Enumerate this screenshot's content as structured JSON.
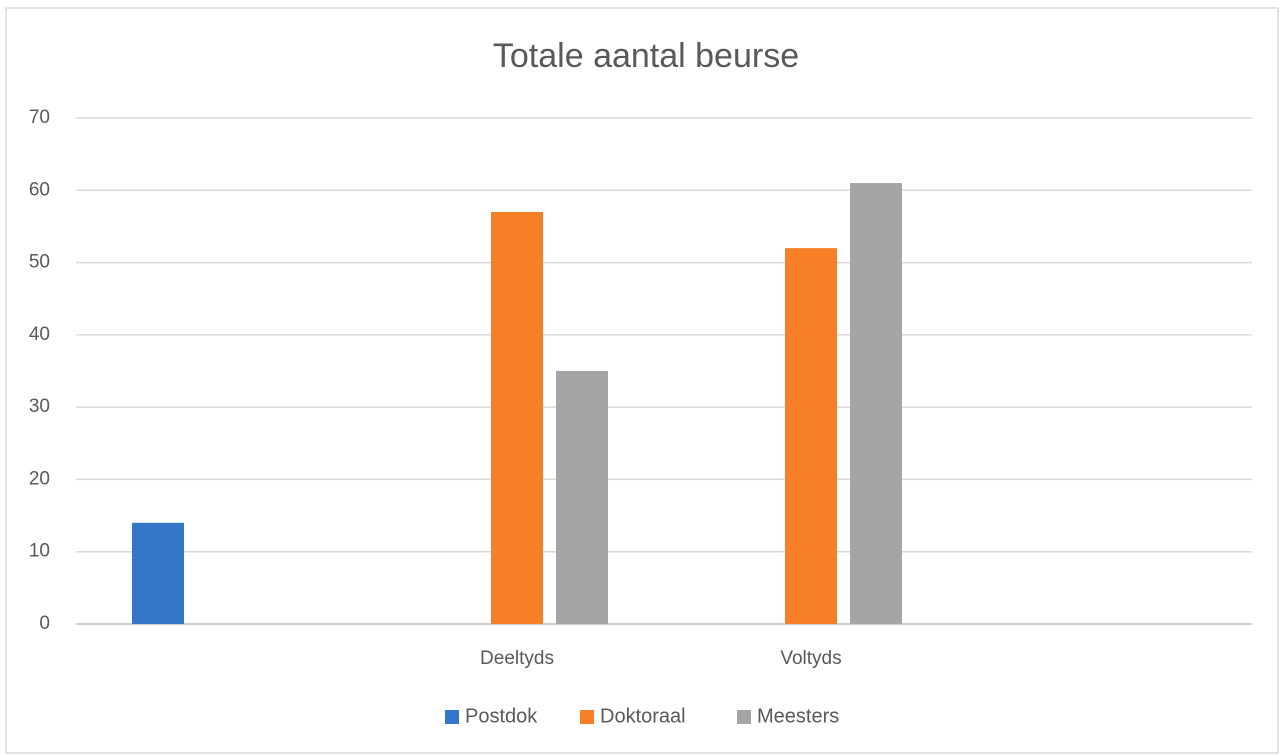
{
  "chart_data": {
    "type": "bar",
    "title": "Totale aantal beurse",
    "categories": [
      null,
      "Deeltyds",
      "Voltyds",
      null
    ],
    "series": [
      {
        "name": "Postdok",
        "color": "#3476c8",
        "values": [
          14,
          null,
          null,
          null
        ]
      },
      {
        "name": "Doktoraal",
        "color": "#f58025",
        "values": [
          null,
          57,
          52,
          null
        ]
      },
      {
        "name": "Meesters",
        "color": "#a5a5a5",
        "values": [
          null,
          35,
          61,
          null
        ]
      }
    ],
    "ylim": [
      0,
      70
    ],
    "yticks": [
      0,
      10,
      20,
      30,
      40,
      50,
      60,
      70
    ],
    "grid": true,
    "legend": "bottom"
  }
}
